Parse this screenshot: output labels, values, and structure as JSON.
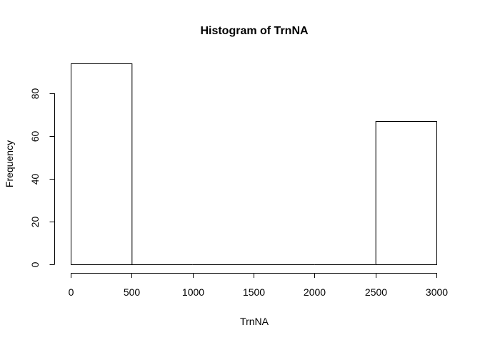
{
  "chart_data": {
    "type": "bar",
    "title": "Histogram of TrnNA",
    "xlabel": "TrnNA",
    "ylabel": "Frequency",
    "bins": [
      {
        "from": 0,
        "to": 500,
        "count": 94
      },
      {
        "from": 500,
        "to": 1000,
        "count": 0
      },
      {
        "from": 1000,
        "to": 1500,
        "count": 0
      },
      {
        "from": 1500,
        "to": 2000,
        "count": 0
      },
      {
        "from": 2000,
        "to": 2500,
        "count": 0
      },
      {
        "from": 2500,
        "to": 3000,
        "count": 67
      }
    ],
    "xlim": [
      0,
      3000
    ],
    "ylim": [
      0,
      94
    ],
    "xticks": [
      "0",
      "500",
      "1000",
      "1500",
      "2000",
      "2500",
      "3000"
    ],
    "yticks": [
      "0",
      "20",
      "40",
      "60",
      "80"
    ],
    "grid": false,
    "colors": {
      "bar_fill": "#ffffff",
      "bar_stroke": "#000000"
    }
  }
}
